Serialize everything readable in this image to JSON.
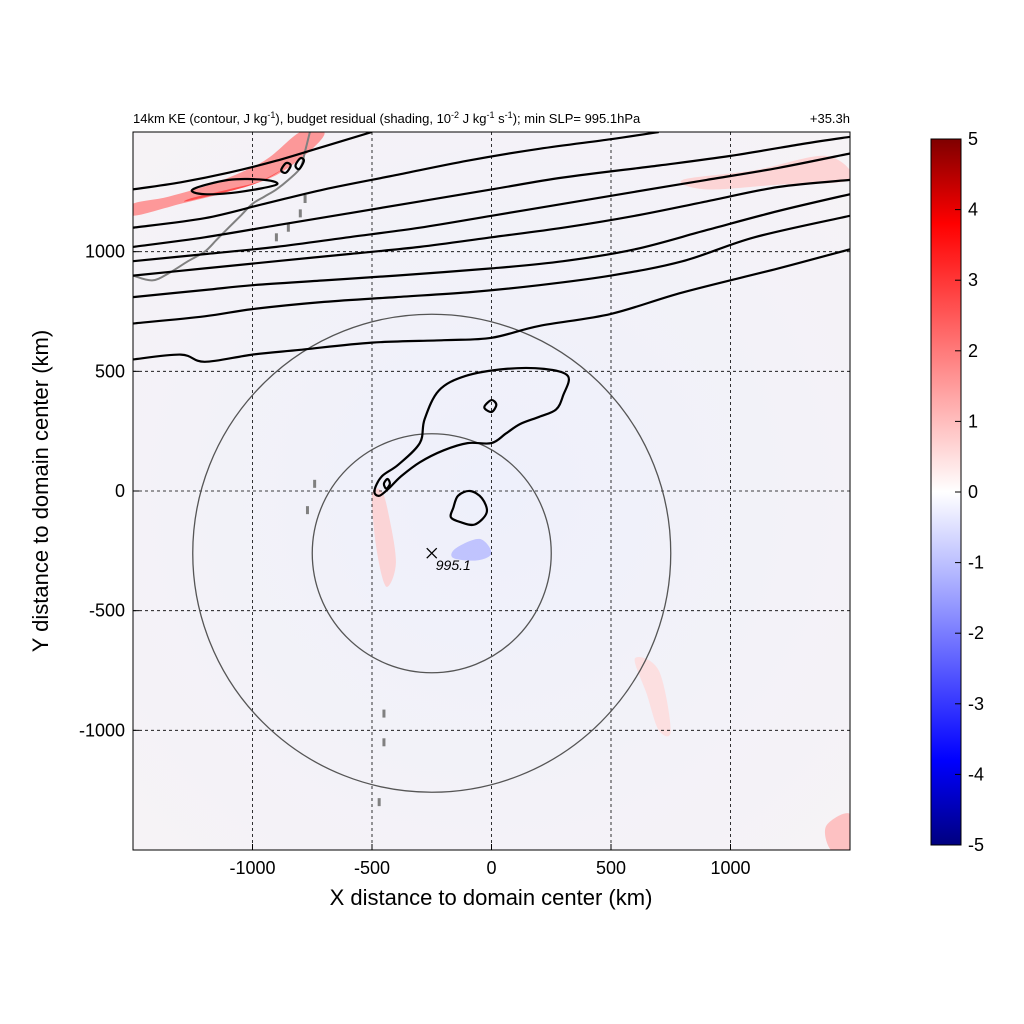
{
  "chart_data": {
    "type": "heatmap",
    "title": "14km KE (contour, J kg",
    "title_sup1": "-1",
    "title_mid": "), budget residual (shading, 10",
    "title_sup2": "-2",
    "title_mid2": " J kg",
    "title_sup3": "-1",
    "title_mid3": " s",
    "title_sup4": "-1",
    "title_end": "); min SLP= 995.1hPa",
    "time_label": "+35.3h",
    "xlabel": "X distance to domain center (km)",
    "ylabel": "Y distance to domain center (km)",
    "xlim": [
      -1500,
      1500
    ],
    "ylim": [
      -1500,
      1500
    ],
    "xticks": [
      -1000,
      -500,
      0,
      500,
      1000
    ],
    "yticks": [
      -1000,
      -500,
      0,
      500,
      1000
    ],
    "grid": true,
    "colorbar": {
      "min": -5,
      "max": 5,
      "ticks": [
        5,
        4,
        3,
        2,
        1,
        0,
        -1,
        -2,
        -3,
        -4,
        -5
      ],
      "colors": [
        "#00007f",
        "#0000ff",
        "#b0b4ff",
        "#ffffff",
        "#ffb0b0",
        "#ff0000",
        "#7f0000"
      ]
    },
    "storm_center": {
      "x": -250,
      "y": -260,
      "label": "995.1"
    },
    "range_rings_km": [
      500,
      1000
    ],
    "ke_contours": [
      {
        "name": "band-1",
        "points": [
          [
            -1500,
            550
          ],
          [
            -1300,
            570
          ],
          [
            -1200,
            540
          ],
          [
            -1000,
            570
          ],
          [
            -800,
            590
          ],
          [
            -500,
            620
          ],
          [
            -200,
            630
          ],
          [
            0,
            640
          ],
          [
            200,
            690
          ],
          [
            500,
            740
          ],
          [
            800,
            830
          ],
          [
            1200,
            930
          ],
          [
            1500,
            1010
          ]
        ]
      },
      {
        "name": "band-2",
        "points": [
          [
            -1500,
            700
          ],
          [
            -1200,
            730
          ],
          [
            -1000,
            760
          ],
          [
            -700,
            790
          ],
          [
            -400,
            810
          ],
          [
            -100,
            830
          ],
          [
            200,
            860
          ],
          [
            500,
            900
          ],
          [
            800,
            960
          ],
          [
            1100,
            1060
          ],
          [
            1500,
            1150
          ]
        ]
      },
      {
        "name": "band-3",
        "points": [
          [
            -1500,
            810
          ],
          [
            -1200,
            840
          ],
          [
            -1000,
            860
          ],
          [
            -700,
            880
          ],
          [
            -400,
            900
          ],
          [
            0,
            930
          ],
          [
            300,
            960
          ],
          [
            600,
            1010
          ],
          [
            900,
            1090
          ],
          [
            1200,
            1170
          ],
          [
            1500,
            1240
          ]
        ]
      },
      {
        "name": "band-4",
        "points": [
          [
            -1500,
            900
          ],
          [
            -1200,
            930
          ],
          [
            -900,
            960
          ],
          [
            -600,
            990
          ],
          [
            -300,
            1020
          ],
          [
            0,
            1060
          ],
          [
            300,
            1100
          ],
          [
            600,
            1150
          ],
          [
            900,
            1210
          ],
          [
            1200,
            1270
          ],
          [
            1500,
            1300
          ]
        ]
      },
      {
        "name": "band-5",
        "points": [
          [
            -1500,
            960
          ],
          [
            -1200,
            990
          ],
          [
            -900,
            1020
          ],
          [
            -600,
            1060
          ],
          [
            -300,
            1100
          ],
          [
            0,
            1150
          ],
          [
            300,
            1200
          ],
          [
            600,
            1250
          ],
          [
            900,
            1300
          ],
          [
            1200,
            1350
          ],
          [
            1500,
            1410
          ]
        ]
      },
      {
        "name": "band-6",
        "points": [
          [
            -1500,
            1020
          ],
          [
            -1200,
            1060
          ],
          [
            -900,
            1110
          ],
          [
            -600,
            1160
          ],
          [
            -300,
            1210
          ],
          [
            0,
            1260
          ],
          [
            300,
            1310
          ],
          [
            700,
            1360
          ],
          [
            1000,
            1400
          ],
          [
            1300,
            1450
          ],
          [
            1500,
            1480
          ]
        ]
      },
      {
        "name": "band-7",
        "points": [
          [
            -1500,
            1100
          ],
          [
            -1200,
            1140
          ],
          [
            -950,
            1200
          ],
          [
            -700,
            1260
          ],
          [
            -400,
            1320
          ],
          [
            -100,
            1380
          ],
          [
            200,
            1430
          ],
          [
            500,
            1470
          ],
          [
            700,
            1500
          ]
        ]
      },
      {
        "name": "band-8",
        "points": [
          [
            -1500,
            1260
          ],
          [
            -1300,
            1290
          ],
          [
            -1100,
            1330
          ],
          [
            -900,
            1380
          ],
          [
            -700,
            1440
          ],
          [
            -500,
            1500
          ]
        ]
      }
    ],
    "ke_closed_contours": [
      {
        "name": "core-blob",
        "points": [
          [
            -160,
            -70
          ],
          [
            -140,
            -20
          ],
          [
            -90,
            0
          ],
          [
            -40,
            -30
          ],
          [
            -20,
            -90
          ],
          [
            -70,
            -140
          ],
          [
            -130,
            -130
          ],
          [
            -170,
            -110
          ]
        ]
      },
      {
        "name": "arc-band",
        "points": [
          [
            -490,
            0
          ],
          [
            -460,
            60
          ],
          [
            -390,
            110
          ],
          [
            -300,
            200
          ],
          [
            -280,
            300
          ],
          [
            -220,
            420
          ],
          [
            -110,
            480
          ],
          [
            60,
            510
          ],
          [
            220,
            510
          ],
          [
            320,
            480
          ],
          [
            300,
            400
          ],
          [
            270,
            340
          ],
          [
            200,
            310
          ],
          [
            120,
            280
          ],
          [
            60,
            240
          ],
          [
            0,
            200
          ],
          [
            -100,
            200
          ],
          [
            -200,
            170
          ],
          [
            -300,
            120
          ],
          [
            -380,
            60
          ],
          [
            -430,
            10
          ],
          [
            -470,
            -20
          ]
        ]
      },
      {
        "name": "small-ring-1",
        "points": [
          [
            -30,
            350
          ],
          [
            0,
            380
          ],
          [
            20,
            360
          ],
          [
            0,
            330
          ]
        ]
      },
      {
        "name": "small-ring-2",
        "points": [
          [
            -450,
            30
          ],
          [
            -435,
            50
          ],
          [
            -425,
            30
          ],
          [
            -440,
            10
          ]
        ]
      },
      {
        "name": "north-cell-1",
        "points": [
          [
            -1250,
            1260
          ],
          [
            -1100,
            1300
          ],
          [
            -950,
            1300
          ],
          [
            -900,
            1280
          ],
          [
            -1050,
            1250
          ],
          [
            -1200,
            1240
          ]
        ]
      },
      {
        "name": "north-cell-2",
        "points": [
          [
            -880,
            1340
          ],
          [
            -860,
            1370
          ],
          [
            -840,
            1360
          ],
          [
            -860,
            1330
          ]
        ]
      },
      {
        "name": "north-cell-3",
        "points": [
          [
            -820,
            1360
          ],
          [
            -800,
            1390
          ],
          [
            -785,
            1380
          ],
          [
            -805,
            1345
          ]
        ]
      }
    ],
    "shading_features": [
      {
        "name": "north-red-band",
        "value": 2.0,
        "points": [
          [
            -1500,
            1150
          ],
          [
            -1300,
            1200
          ],
          [
            -1100,
            1250
          ],
          [
            -900,
            1320
          ],
          [
            -750,
            1430
          ],
          [
            -700,
            1500
          ],
          [
            -800,
            1500
          ],
          [
            -950,
            1380
          ],
          [
            -1150,
            1290
          ],
          [
            -1350,
            1230
          ],
          [
            -1500,
            1200
          ]
        ]
      },
      {
        "name": "north-red-core",
        "value": 3.0,
        "points": [
          [
            -1280,
            1210
          ],
          [
            -1150,
            1240
          ],
          [
            -1000,
            1280
          ],
          [
            -900,
            1330
          ],
          [
            -850,
            1360
          ],
          [
            -950,
            1300
          ],
          [
            -1100,
            1260
          ],
          [
            -1250,
            1225
          ]
        ]
      },
      {
        "name": "ne-streaks",
        "value": 0.8,
        "points": [
          [
            800,
            1300
          ],
          [
            1100,
            1340
          ],
          [
            1400,
            1400
          ],
          [
            1500,
            1300
          ],
          [
            1200,
            1280
          ],
          [
            900,
            1260
          ]
        ]
      },
      {
        "name": "center-red-arc",
        "value": 0.8,
        "points": [
          [
            -500,
            -20
          ],
          [
            -480,
            -250
          ],
          [
            -440,
            -400
          ],
          [
            -400,
            -300
          ],
          [
            -430,
            -100
          ],
          [
            -460,
            0
          ]
        ]
      },
      {
        "name": "center-blue-ring",
        "value": -1.2,
        "points": [
          [
            -150,
            -240
          ],
          [
            -50,
            -200
          ],
          [
            0,
            -260
          ],
          [
            -60,
            -290
          ],
          [
            -160,
            -280
          ]
        ]
      },
      {
        "name": "south-red-streak",
        "value": 0.6,
        "points": [
          [
            600,
            -700
          ],
          [
            700,
            -750
          ],
          [
            750,
            -1000
          ],
          [
            700,
            -1000
          ],
          [
            650,
            -850
          ]
        ]
      },
      {
        "name": "se-red-corner",
        "value": 1.2,
        "points": [
          [
            1400,
            -1400
          ],
          [
            1500,
            -1350
          ],
          [
            1500,
            -1500
          ],
          [
            1420,
            -1500
          ]
        ]
      }
    ]
  }
}
